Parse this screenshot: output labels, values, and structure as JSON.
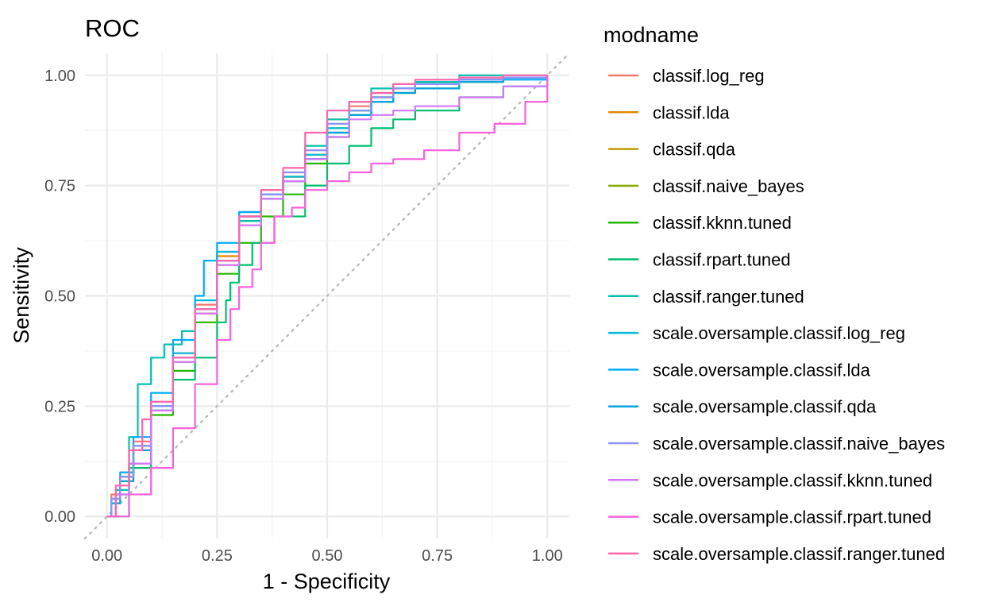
{
  "chart_data": {
    "type": "line",
    "title": "ROC",
    "xlabel": "1 - Specificity",
    "ylabel": "Sensitivity",
    "xlim": [
      -0.05,
      1.05
    ],
    "ylim": [
      -0.05,
      1.05
    ],
    "xticks": [
      0,
      0.25,
      0.5,
      0.75,
      1
    ],
    "xtick_labels": [
      "0.00",
      "0.25",
      "0.50",
      "0.75",
      "1.00"
    ],
    "yticks": [
      0,
      0.25,
      0.5,
      0.75,
      1
    ],
    "ytick_labels": [
      "0.00",
      "0.25",
      "0.50",
      "0.75",
      "1.00"
    ],
    "grid": true,
    "reference_line": "diagonal y = x, dotted grey",
    "legend": {
      "title": "modname",
      "position": "right"
    },
    "series": [
      {
        "name": "classif.log_reg",
        "color": "#F8766D",
        "x": [
          0,
          0.01,
          0.03,
          0.06,
          0.1,
          0.15,
          0.2,
          0.25,
          0.3,
          0.35,
          0.4,
          0.45,
          0.5,
          0.55,
          0.6,
          0.65,
          0.7,
          0.8,
          0.9,
          1
        ],
        "y": [
          0,
          0.05,
          0.1,
          0.17,
          0.26,
          0.37,
          0.48,
          0.6,
          0.69,
          0.74,
          0.78,
          0.83,
          0.9,
          0.93,
          0.96,
          0.97,
          0.98,
          0.99,
          0.995,
          1
        ]
      },
      {
        "name": "classif.lda",
        "color": "#E18A00",
        "x": [
          0,
          0.01,
          0.03,
          0.06,
          0.1,
          0.15,
          0.2,
          0.25,
          0.3,
          0.35,
          0.4,
          0.45,
          0.5,
          0.55,
          0.6,
          0.65,
          0.7,
          0.8,
          0.9,
          1
        ],
        "y": [
          0,
          0.04,
          0.09,
          0.16,
          0.25,
          0.36,
          0.47,
          0.59,
          0.68,
          0.73,
          0.77,
          0.82,
          0.89,
          0.92,
          0.95,
          0.97,
          0.98,
          0.99,
          0.995,
          1
        ]
      },
      {
        "name": "classif.qda",
        "color": "#BE9C00",
        "x": [
          0,
          0.01,
          0.03,
          0.06,
          0.1,
          0.15,
          0.2,
          0.25,
          0.3,
          0.35,
          0.4,
          0.45,
          0.5,
          0.55,
          0.6,
          0.65,
          0.7,
          0.8,
          0.9,
          1
        ],
        "y": [
          0,
          0.03,
          0.08,
          0.15,
          0.24,
          0.35,
          0.46,
          0.57,
          0.67,
          0.72,
          0.76,
          0.81,
          0.87,
          0.91,
          0.94,
          0.96,
          0.97,
          0.985,
          0.995,
          1
        ]
      },
      {
        "name": "classif.naive_bayes",
        "color": "#8CAB00",
        "x": [
          0,
          0.01,
          0.03,
          0.06,
          0.1,
          0.15,
          0.2,
          0.25,
          0.3,
          0.35,
          0.4,
          0.45,
          0.5,
          0.55,
          0.6,
          0.65,
          0.7,
          0.8,
          0.9,
          1
        ],
        "y": [
          0,
          0.04,
          0.09,
          0.16,
          0.25,
          0.36,
          0.47,
          0.58,
          0.68,
          0.73,
          0.77,
          0.82,
          0.88,
          0.92,
          0.95,
          0.97,
          0.98,
          0.99,
          0.995,
          1
        ]
      },
      {
        "name": "classif.kknn.tuned",
        "color": "#24B700",
        "x": [
          0,
          0.02,
          0.05,
          0.1,
          0.15,
          0.2,
          0.25,
          0.3,
          0.35,
          0.4,
          0.45,
          0.5,
          0.55,
          0.6,
          0.65,
          0.7,
          0.8,
          0.9,
          1
        ],
        "y": [
          0,
          0.05,
          0.12,
          0.23,
          0.33,
          0.44,
          0.55,
          0.62,
          0.68,
          0.73,
          0.8,
          0.86,
          0.91,
          0.94,
          0.96,
          0.97,
          0.985,
          0.995,
          1
        ]
      },
      {
        "name": "classif.rpart.tuned",
        "color": "#00BE70",
        "x": [
          0,
          0.05,
          0.1,
          0.15,
          0.2,
          0.25,
          0.27,
          0.28,
          0.3,
          0.33,
          0.38,
          0.45,
          0.5,
          0.55,
          0.6,
          0.65,
          0.7,
          0.8,
          0.9,
          1
        ],
        "y": [
          0,
          0.11,
          0.24,
          0.31,
          0.36,
          0.44,
          0.49,
          0.53,
          0.57,
          0.62,
          0.68,
          0.75,
          0.8,
          0.84,
          0.88,
          0.9,
          0.92,
          0.95,
          0.975,
          1
        ]
      },
      {
        "name": "classif.ranger.tuned",
        "color": "#00C1AB",
        "x": [
          0,
          0.02,
          0.05,
          0.07,
          0.1,
          0.13,
          0.17,
          0.2,
          0.25,
          0.3,
          0.35,
          0.4,
          0.45,
          0.5,
          0.55,
          0.6,
          0.65,
          0.7,
          0.8,
          1
        ],
        "y": [
          0,
          0.06,
          0.18,
          0.3,
          0.36,
          0.39,
          0.42,
          0.47,
          0.58,
          0.67,
          0.73,
          0.76,
          0.84,
          0.9,
          0.94,
          0.97,
          0.98,
          0.985,
          1,
          1
        ]
      },
      {
        "name": "scale.oversample.classif.log_reg",
        "color": "#00BBDA",
        "x": [
          0,
          0.01,
          0.03,
          0.06,
          0.1,
          0.15,
          0.2,
          0.25,
          0.3,
          0.35,
          0.4,
          0.45,
          0.5,
          0.55,
          0.6,
          0.65,
          0.7,
          0.8,
          0.9,
          1
        ],
        "y": [
          0,
          0.04,
          0.09,
          0.16,
          0.25,
          0.37,
          0.49,
          0.6,
          0.69,
          0.73,
          0.77,
          0.82,
          0.88,
          0.92,
          0.95,
          0.97,
          0.98,
          0.99,
          0.995,
          1
        ]
      },
      {
        "name": "scale.oversample.classif.lda",
        "color": "#00ACFC",
        "x": [
          0,
          0.01,
          0.03,
          0.06,
          0.1,
          0.15,
          0.2,
          0.22,
          0.25,
          0.3,
          0.35,
          0.4,
          0.45,
          0.5,
          0.55,
          0.6,
          0.65,
          0.7,
          0.8,
          1
        ],
        "y": [
          0,
          0.04,
          0.1,
          0.18,
          0.28,
          0.4,
          0.5,
          0.58,
          0.62,
          0.69,
          0.73,
          0.76,
          0.81,
          0.87,
          0.91,
          0.94,
          0.97,
          0.98,
          0.99,
          1
        ]
      },
      {
        "name": "scale.oversample.classif.qda",
        "color": "#00A5E0",
        "x": [
          0,
          0.01,
          0.03,
          0.06,
          0.1,
          0.15,
          0.2,
          0.25,
          0.3,
          0.35,
          0.4,
          0.45,
          0.5,
          0.55,
          0.6,
          0.65,
          0.7,
          0.8,
          0.9,
          1
        ],
        "y": [
          0,
          0.03,
          0.08,
          0.15,
          0.24,
          0.36,
          0.47,
          0.58,
          0.68,
          0.72,
          0.76,
          0.81,
          0.87,
          0.91,
          0.94,
          0.96,
          0.97,
          0.985,
          0.995,
          1
        ]
      },
      {
        "name": "scale.oversample.classif.naive_bayes",
        "color": "#8B93FF",
        "x": [
          0,
          0.01,
          0.03,
          0.06,
          0.1,
          0.15,
          0.2,
          0.25,
          0.3,
          0.35,
          0.4,
          0.45,
          0.5,
          0.55,
          0.6,
          0.65,
          0.7,
          0.8,
          0.9,
          1
        ],
        "y": [
          0,
          0.04,
          0.09,
          0.16,
          0.25,
          0.36,
          0.47,
          0.58,
          0.68,
          0.73,
          0.78,
          0.83,
          0.89,
          0.92,
          0.95,
          0.97,
          0.98,
          0.99,
          0.995,
          1
        ]
      },
      {
        "name": "scale.oversample.classif.kknn.tuned",
        "color": "#D575FE",
        "x": [
          0,
          0.02,
          0.05,
          0.1,
          0.15,
          0.2,
          0.25,
          0.3,
          0.35,
          0.4,
          0.45,
          0.5,
          0.55,
          0.6,
          0.65,
          0.7,
          0.8,
          0.9,
          1
        ],
        "y": [
          0,
          0.05,
          0.12,
          0.24,
          0.35,
          0.46,
          0.57,
          0.66,
          0.72,
          0.76,
          0.81,
          0.86,
          0.9,
          0.91,
          0.92,
          0.93,
          0.95,
          0.975,
          1
        ]
      },
      {
        "name": "scale.oversample.classif.rpart.tuned",
        "color": "#F962DD",
        "x": [
          0,
          0.05,
          0.1,
          0.15,
          0.2,
          0.25,
          0.28,
          0.3,
          0.33,
          0.35,
          0.38,
          0.42,
          0.45,
          0.5,
          0.55,
          0.6,
          0.65,
          0.72,
          0.8,
          0.88,
          0.95,
          1
        ],
        "y": [
          0,
          0.05,
          0.11,
          0.2,
          0.3,
          0.4,
          0.47,
          0.52,
          0.56,
          0.62,
          0.68,
          0.7,
          0.74,
          0.76,
          0.78,
          0.8,
          0.81,
          0.83,
          0.87,
          0.89,
          0.94,
          1
        ]
      },
      {
        "name": "scale.oversample.classif.ranger.tuned",
        "color": "#FF65AC",
        "x": [
          0,
          0.02,
          0.05,
          0.08,
          0.1,
          0.15,
          0.2,
          0.25,
          0.3,
          0.35,
          0.4,
          0.45,
          0.5,
          0.55,
          0.6,
          0.65,
          0.7,
          0.8,
          0.9,
          1
        ],
        "y": [
          0,
          0.07,
          0.15,
          0.22,
          0.26,
          0.36,
          0.47,
          0.58,
          0.68,
          0.74,
          0.79,
          0.87,
          0.92,
          0.94,
          0.96,
          0.98,
          0.99,
          0.995,
          1,
          1
        ]
      }
    ]
  }
}
